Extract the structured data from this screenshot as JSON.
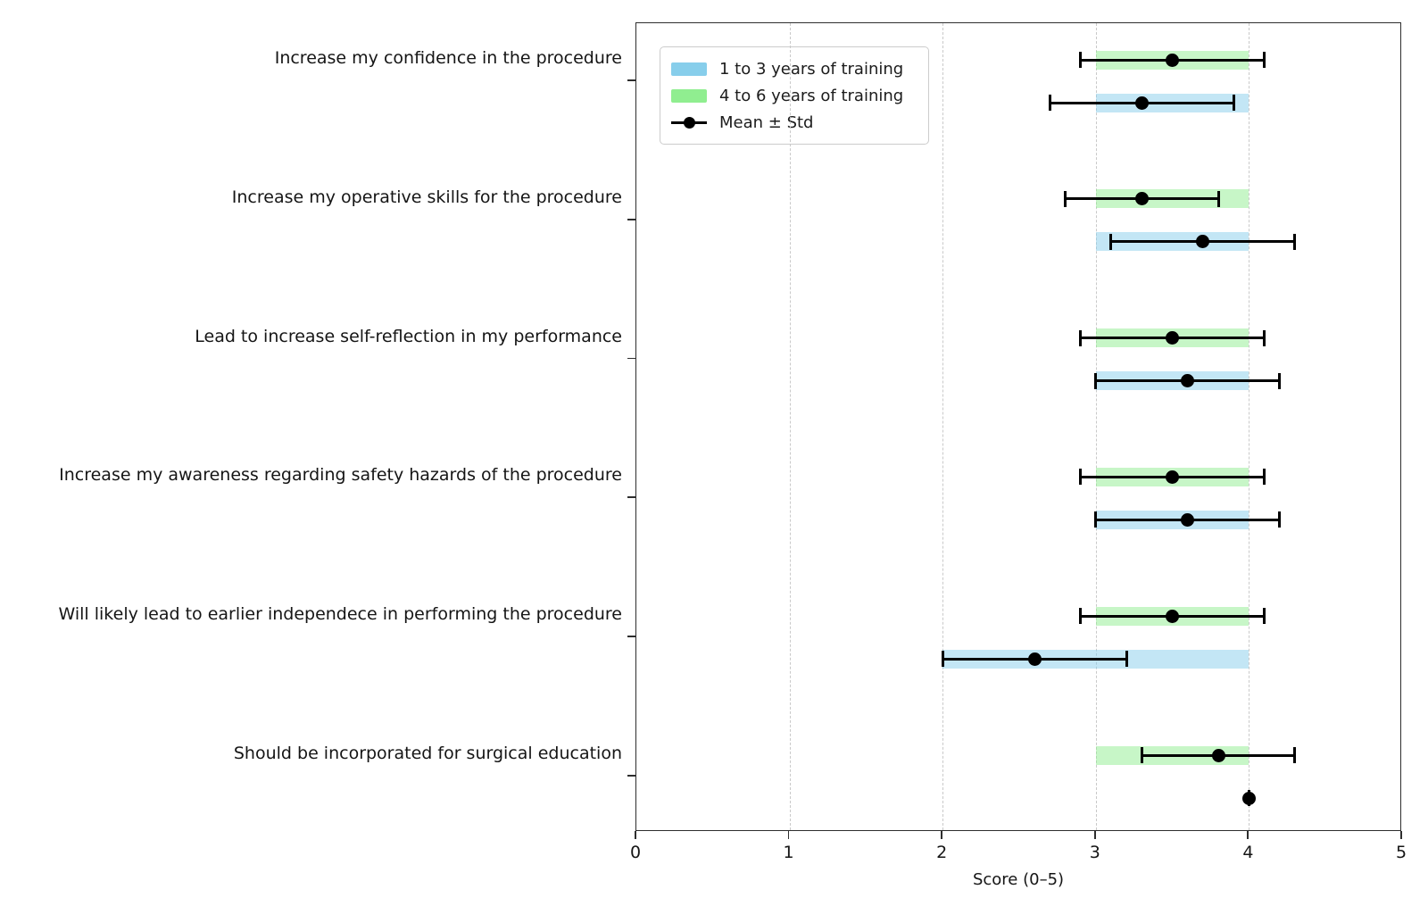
{
  "figure": {
    "xlabel": "Score (0–5)",
    "background_color": "#ffffff",
    "text_color": "#151515"
  },
  "legend": {
    "position": "upper-left",
    "items": [
      {
        "label": "1 to 3 years of training",
        "swatch": "patch",
        "color": "#87ceeb"
      },
      {
        "label": "4 to 6 years of training",
        "swatch": "patch",
        "color": "#90ee90"
      },
      {
        "label": "Mean ± Std",
        "swatch": "line-marker",
        "color": "#000000"
      }
    ]
  },
  "chart_data": {
    "type": "bar",
    "orientation": "horizontal",
    "title": "",
    "xlabel": "Score (0–5)",
    "ylabel": "",
    "xlim": [
      0,
      5
    ],
    "x_ticks": [
      0,
      1,
      2,
      3,
      4,
      5
    ],
    "grid": "vertical dashed gridlines at 1, 2, 3, 4",
    "legend_position": "upper left",
    "error_bar_label": "Mean ± Std",
    "bars_show": "range (min to max) of responses; error bars show mean ± std",
    "categories": [
      "Increase my confidence in the procedure",
      "Increase my operative skills for the procedure",
      "Lead to increase self-reflection in my performance",
      "Increase my awareness regarding safety hazards of the procedure",
      "Will likely lead to earlier independece in performing the procedure",
      "Should be incorporated for surgical education"
    ],
    "series": [
      {
        "name": "1 to 3 years of training",
        "bar_color": "#87ceeb",
        "bar_alpha": 0.5,
        "group_position": "lower",
        "bars": [
          {
            "range_min": 3.0,
            "range_max": 4.0,
            "mean": 3.3,
            "std": 0.6
          },
          {
            "range_min": 3.0,
            "range_max": 4.0,
            "mean": 3.7,
            "std": 0.6
          },
          {
            "range_min": 3.0,
            "range_max": 4.0,
            "mean": 3.6,
            "std": 0.6
          },
          {
            "range_min": 3.0,
            "range_max": 4.0,
            "mean": 3.6,
            "std": 0.6
          },
          {
            "range_min": 2.0,
            "range_max": 4.0,
            "mean": 2.6,
            "std": 0.6
          },
          {
            "range_min": 4.0,
            "range_max": 4.0,
            "mean": 4.0,
            "std": 0.0
          }
        ]
      },
      {
        "name": "4 to 6 years of training",
        "bar_color": "#90ee90",
        "bar_alpha": 0.5,
        "group_position": "upper",
        "bars": [
          {
            "range_min": 3.0,
            "range_max": 4.0,
            "mean": 3.5,
            "std": 0.6
          },
          {
            "range_min": 3.0,
            "range_max": 4.0,
            "mean": 3.3,
            "std": 0.5
          },
          {
            "range_min": 3.0,
            "range_max": 4.0,
            "mean": 3.5,
            "std": 0.6
          },
          {
            "range_min": 3.0,
            "range_max": 4.0,
            "mean": 3.5,
            "std": 0.6
          },
          {
            "range_min": 3.0,
            "range_max": 4.0,
            "mean": 3.5,
            "std": 0.6
          },
          {
            "range_min": 3.0,
            "range_max": 4.0,
            "mean": 3.8,
            "std": 0.5
          }
        ]
      }
    ]
  }
}
